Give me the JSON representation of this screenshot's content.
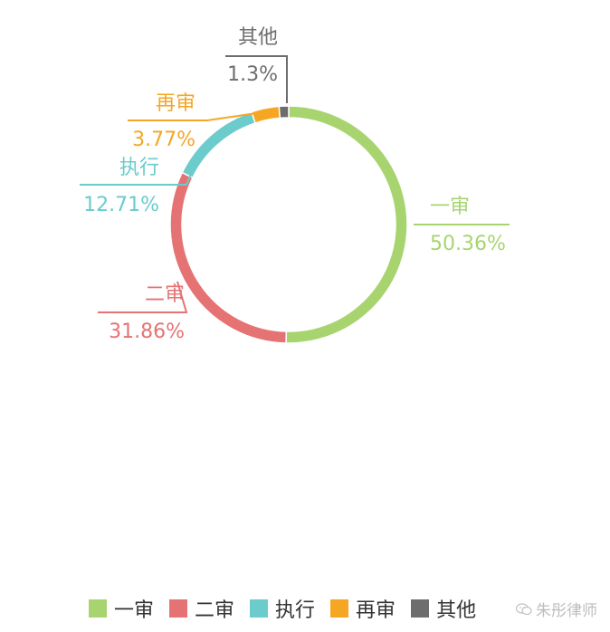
{
  "chart_data": {
    "type": "pie",
    "donut": true,
    "start_angle_deg": 0,
    "direction": "clockwise",
    "slices": [
      {
        "name": "一审",
        "value": 50.36,
        "label": "50.36%",
        "color": "#a8d46f"
      },
      {
        "name": "二审",
        "value": 31.86,
        "label": "31.86%",
        "color": "#e57373"
      },
      {
        "name": "执行",
        "value": 12.71,
        "label": "12.71%",
        "color": "#6ccbcb"
      },
      {
        "name": "再审",
        "value": 3.77,
        "label": "3.77%",
        "color": "#f5a623"
      },
      {
        "name": "其他",
        "value": 1.3,
        "label": "1.3%",
        "color": "#6d6d6d"
      }
    ],
    "legend": [
      "一审",
      "二审",
      "执行",
      "再审",
      "其他"
    ],
    "legend_position": "bottom"
  },
  "watermark": {
    "text": "朱彤律师",
    "icon": "wechat-icon"
  }
}
